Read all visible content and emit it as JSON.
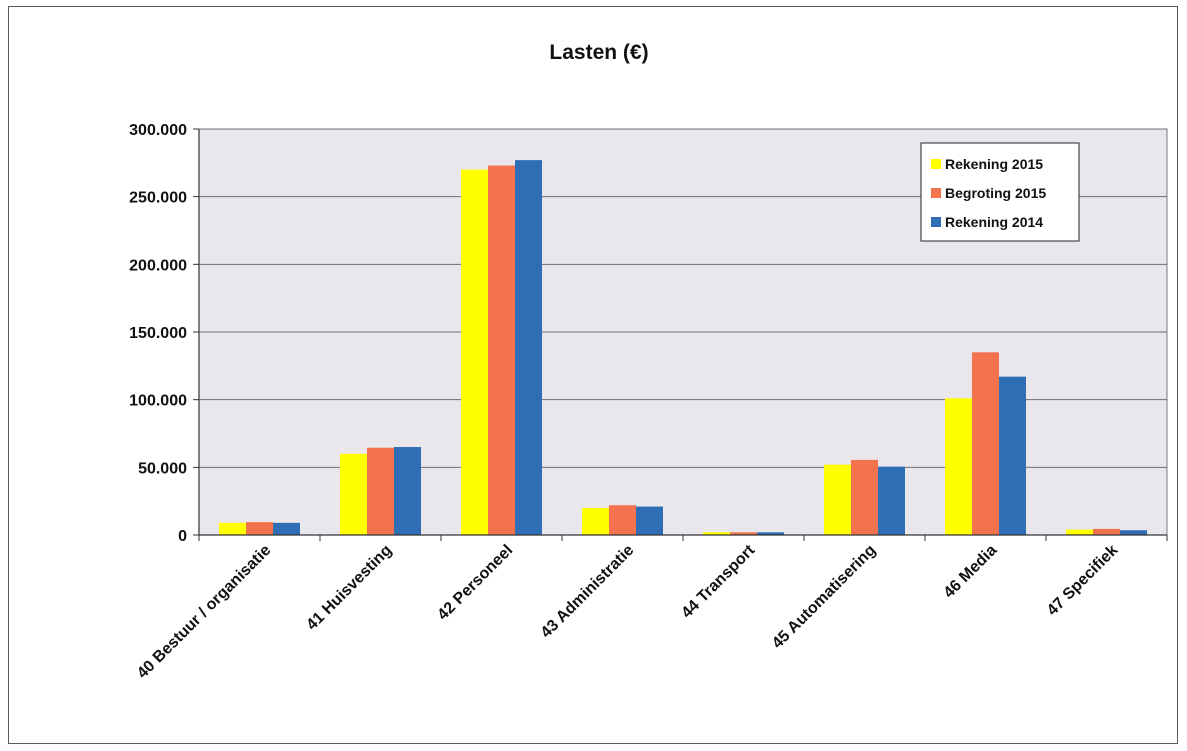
{
  "chart_data": {
    "type": "bar",
    "title": "Lasten (€)",
    "xlabel": "",
    "ylabel": "",
    "ylim": [
      0,
      300000
    ],
    "yticks": [
      0,
      50000,
      100000,
      150000,
      200000,
      250000,
      300000
    ],
    "ytick_labels": [
      "0",
      "50.000",
      "100.000",
      "150.000",
      "200.000",
      "250.000",
      "300.000"
    ],
    "grid": true,
    "legend_position": "top-right",
    "categories": [
      "40 Bestuur / organisatie",
      "41 Huisvesting",
      "42 Personeel",
      "43 Administratie",
      "44 Transport",
      "45 Automatisering",
      "46 Media",
      "47 Specifiek"
    ],
    "series": [
      {
        "name": "Rekening 2015",
        "color": "#ffff00",
        "values": [
          9000,
          60000,
          270000,
          20000,
          2000,
          52000,
          101000,
          4000
        ]
      },
      {
        "name": "Begroting 2015",
        "color": "#f4734f",
        "values": [
          9500,
          64500,
          273000,
          22000,
          2000,
          55500,
          135000,
          4500
        ]
      },
      {
        "name": "Rekening 2014",
        "color": "#2f6db5",
        "values": [
          9000,
          65000,
          277000,
          21000,
          2000,
          50500,
          117000,
          3500
        ]
      }
    ]
  }
}
